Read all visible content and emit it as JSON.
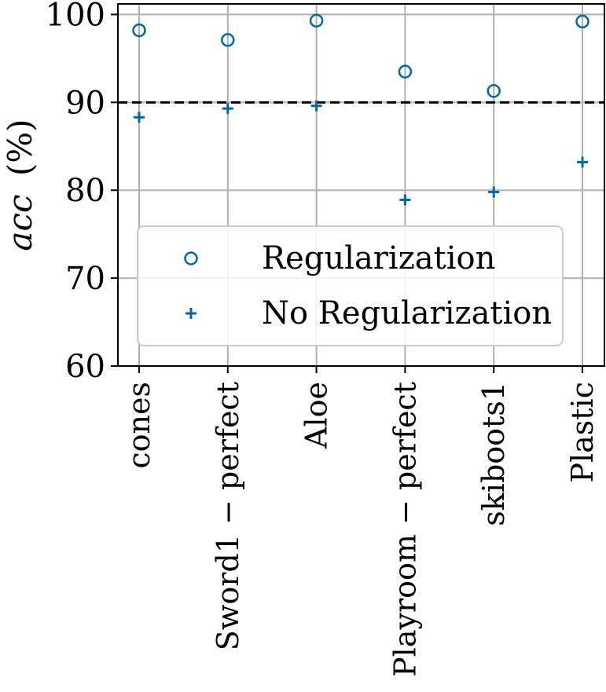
{
  "chart_data": {
    "type": "scatter",
    "categories": [
      "cones",
      "Sword1 − perfect",
      "Aloe",
      "Playroom − perfect",
      "skiboots1",
      "Plastic"
    ],
    "series": [
      {
        "name": "Regularization",
        "marker": "circle-open",
        "color": "#0068a6",
        "values": [
          98.2,
          97.1,
          99.3,
          93.5,
          91.3,
          99.2
        ]
      },
      {
        "name": "No Regularization",
        "marker": "plus",
        "color": "#0068a6",
        "values": [
          88.3,
          89.3,
          89.6,
          78.9,
          79.8,
          83.2
        ]
      }
    ],
    "reference_line": {
      "y": 90,
      "style": "dashed",
      "color": "#000000"
    },
    "ylabel_italic": "acc",
    "ylabel_unit": "(%)",
    "xlabel": "",
    "ylim": [
      60,
      101.2
    ],
    "yticks": [
      60,
      70,
      80,
      90,
      100
    ],
    "ytick_labels": [
      "60",
      "70",
      "80",
      "90",
      "100"
    ],
    "grid": true,
    "legend_position": "lower-center"
  }
}
